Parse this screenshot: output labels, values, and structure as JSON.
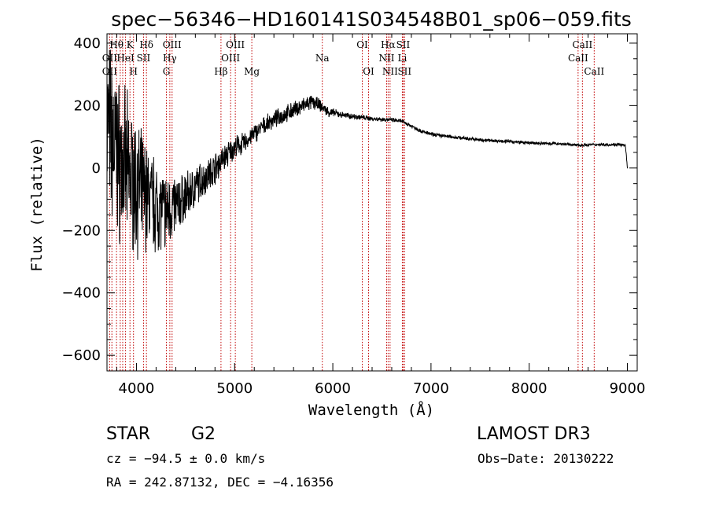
{
  "chart_data": {
    "type": "line",
    "title": "spec−56346−HD160141S034548B01_sp06−059.fits",
    "xlabel": "Wavelength (Å)",
    "ylabel": "Flux (relative)",
    "xlim": [
      3700,
      9100
    ],
    "ylim": [
      -650,
      430
    ],
    "x_ticks": [
      4000,
      5000,
      6000,
      7000,
      8000,
      9000
    ],
    "x_tick_labels": [
      "4000",
      "5000",
      "6000",
      "7000",
      "8000",
      "9000"
    ],
    "y_ticks": [
      400,
      200,
      0,
      -200,
      -400,
      -600
    ],
    "y_tick_labels": [
      "400",
      "200",
      "0",
      "−200",
      "−400",
      "−600"
    ],
    "series": [
      {
        "name": "flux",
        "noise_seed": 7,
        "anchors": [
          [
            3700,
            150
          ],
          [
            3780,
            60
          ],
          [
            3860,
            0
          ],
          [
            3940,
            -30
          ],
          [
            4000,
            -60
          ],
          [
            4100,
            -90
          ],
          [
            4200,
            -120
          ],
          [
            4300,
            -140
          ],
          [
            4400,
            -120
          ],
          [
            4500,
            -95
          ],
          [
            4600,
            -60
          ],
          [
            4700,
            -30
          ],
          [
            4800,
            0
          ],
          [
            4900,
            35
          ],
          [
            5000,
            65
          ],
          [
            5100,
            80
          ],
          [
            5200,
            110
          ],
          [
            5300,
            135
          ],
          [
            5400,
            155
          ],
          [
            5500,
            170
          ],
          [
            5600,
            185
          ],
          [
            5700,
            200
          ],
          [
            5780,
            210
          ],
          [
            5850,
            205
          ],
          [
            5950,
            180
          ],
          [
            6100,
            170
          ],
          [
            6300,
            162
          ],
          [
            6400,
            158
          ],
          [
            6550,
            155
          ],
          [
            6700,
            150
          ],
          [
            6800,
            135
          ],
          [
            6900,
            118
          ],
          [
            7000,
            108
          ],
          [
            7200,
            100
          ],
          [
            7500,
            90
          ],
          [
            7800,
            85
          ],
          [
            8000,
            80
          ],
          [
            8300,
            78
          ],
          [
            8500,
            73
          ],
          [
            8700,
            75
          ],
          [
            8900,
            75
          ],
          [
            8980,
            72
          ],
          [
            9000,
            0
          ]
        ],
        "noise_envelope": [
          [
            3700,
            240
          ],
          [
            3800,
            220
          ],
          [
            3900,
            200
          ],
          [
            4000,
            170
          ],
          [
            4100,
            140
          ],
          [
            4200,
            120
          ],
          [
            4300,
            100
          ],
          [
            4400,
            80
          ],
          [
            4500,
            65
          ],
          [
            4600,
            55
          ],
          [
            4700,
            45
          ],
          [
            4800,
            40
          ],
          [
            4900,
            35
          ],
          [
            5000,
            30
          ],
          [
            5200,
            25
          ],
          [
            5400,
            22
          ],
          [
            5700,
            22
          ],
          [
            5900,
            15
          ],
          [
            6100,
            8
          ],
          [
            6500,
            6
          ],
          [
            7000,
            5
          ],
          [
            8000,
            4
          ],
          [
            9000,
            4
          ]
        ]
      }
    ],
    "line_markers": [
      {
        "label": "Hθ",
        "wavelength": 3797,
        "row": 0
      },
      {
        "label": "K",
        "wavelength": 3934,
        "row": 0
      },
      {
        "label": "Hδ",
        "wavelength": 4102,
        "row": 0
      },
      {
        "label": "OIII",
        "wavelength": 4363,
        "row": 0
      },
      {
        "label": "OIII",
        "wavelength": 5007,
        "row": 0
      },
      {
        "label": "Na",
        "wavelength": 5893,
        "row": 1
      },
      {
        "label": "OI",
        "wavelength": 6300,
        "row": 0
      },
      {
        "label": "OI",
        "wavelength": 6364,
        "row": 2
      },
      {
        "label": "Hα",
        "wavelength": 6563,
        "row": 0
      },
      {
        "label": "NII",
        "wavelength": 6548,
        "row": 1
      },
      {
        "label": "NII",
        "wavelength": 6583,
        "row": 2
      },
      {
        "label": "SII",
        "wavelength": 6716,
        "row": 0
      },
      {
        "label": "Li",
        "wavelength": 6708,
        "row": 1
      },
      {
        "label": "SII",
        "wavelength": 6731,
        "row": 2
      },
      {
        "label": "OII",
        "wavelength": 3727,
        "row": 1
      },
      {
        "label": "OII",
        "wavelength": 3727,
        "row": 2
      },
      {
        "label": "HeI",
        "wavelength": 3889,
        "row": 1
      },
      {
        "label": "H",
        "wavelength": 3970,
        "row": 2
      },
      {
        "label": "SII",
        "wavelength": 4072,
        "row": 1
      },
      {
        "label": "Hγ",
        "wavelength": 4340,
        "row": 1
      },
      {
        "label": "G",
        "wavelength": 4305,
        "row": 2
      },
      {
        "label": "Hβ",
        "wavelength": 4861,
        "row": 2
      },
      {
        "label": "OIII",
        "wavelength": 4959,
        "row": 1
      },
      {
        "label": "Mg",
        "wavelength": 5175,
        "row": 2
      },
      {
        "label": "CaII",
        "wavelength": 8542,
        "row": 0
      },
      {
        "label": "CaII",
        "wavelength": 8498,
        "row": 1
      },
      {
        "label": "CaII",
        "wavelength": 8662,
        "row": 2
      }
    ],
    "extra_marker_lines": [
      3750,
      3835,
      3860
    ]
  },
  "info": {
    "object_type": "STAR",
    "subclass": "G2",
    "survey": "LAMOST DR3",
    "redshift_line": "cz = −94.5 ± 0.0 km/s",
    "obs_date_line": "Obs−Date: 20130222",
    "coords_line": "RA = 242.87132, DEC =  −4.16356"
  },
  "colors": {
    "line": "#000000",
    "marker": "#c00000",
    "axis": "#000000"
  }
}
